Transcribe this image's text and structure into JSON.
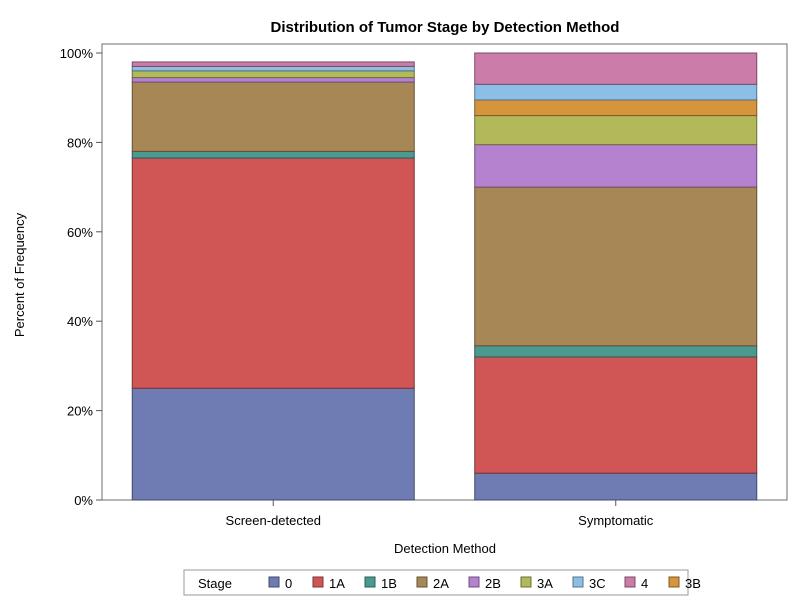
{
  "chart_data": {
    "type": "bar",
    "stacked": true,
    "title": "Distribution of Tumor Stage by Detection Method",
    "xlabel": "Detection Method",
    "ylabel": "Percent of Frequency",
    "ylim": [
      0,
      100
    ],
    "yticks": [
      0,
      20,
      40,
      60,
      80,
      100
    ],
    "ytick_labels": [
      "0%",
      "20%",
      "40%",
      "60%",
      "80%",
      "100%"
    ],
    "grid": false,
    "legend_position": "bottom",
    "legend_title": "Stage",
    "categories": [
      "Screen-detected",
      "Symptomatic"
    ],
    "series": [
      {
        "name": "0",
        "color": "#6f7bb3",
        "values": [
          25.0,
          6.0
        ]
      },
      {
        "name": "1A",
        "color": "#d05555",
        "values": [
          51.5,
          26.0
        ]
      },
      {
        "name": "1B",
        "color": "#4a9a8f",
        "values": [
          1.5,
          2.5
        ]
      },
      {
        "name": "2A",
        "color": "#a88757",
        "values": [
          15.5,
          35.5
        ]
      },
      {
        "name": "2B",
        "color": "#b582cf",
        "values": [
          1.0,
          9.5
        ]
      },
      {
        "name": "3A",
        "color": "#b2b95a",
        "values": [
          1.5,
          6.5
        ]
      },
      {
        "name": "3C",
        "color": "#8bbfe6",
        "values": [
          1.0,
          3.5
        ]
      },
      {
        "name": "4",
        "color": "#cc7ca8",
        "values": [
          1.0,
          7.0
        ]
      },
      {
        "name": "3B",
        "color": "#d6953c",
        "values": [
          0.0,
          3.5
        ]
      }
    ],
    "stack_order": [
      "0",
      "1A",
      "1B",
      "2A",
      "2B",
      "3A",
      "3B",
      "3C",
      "4"
    ]
  }
}
